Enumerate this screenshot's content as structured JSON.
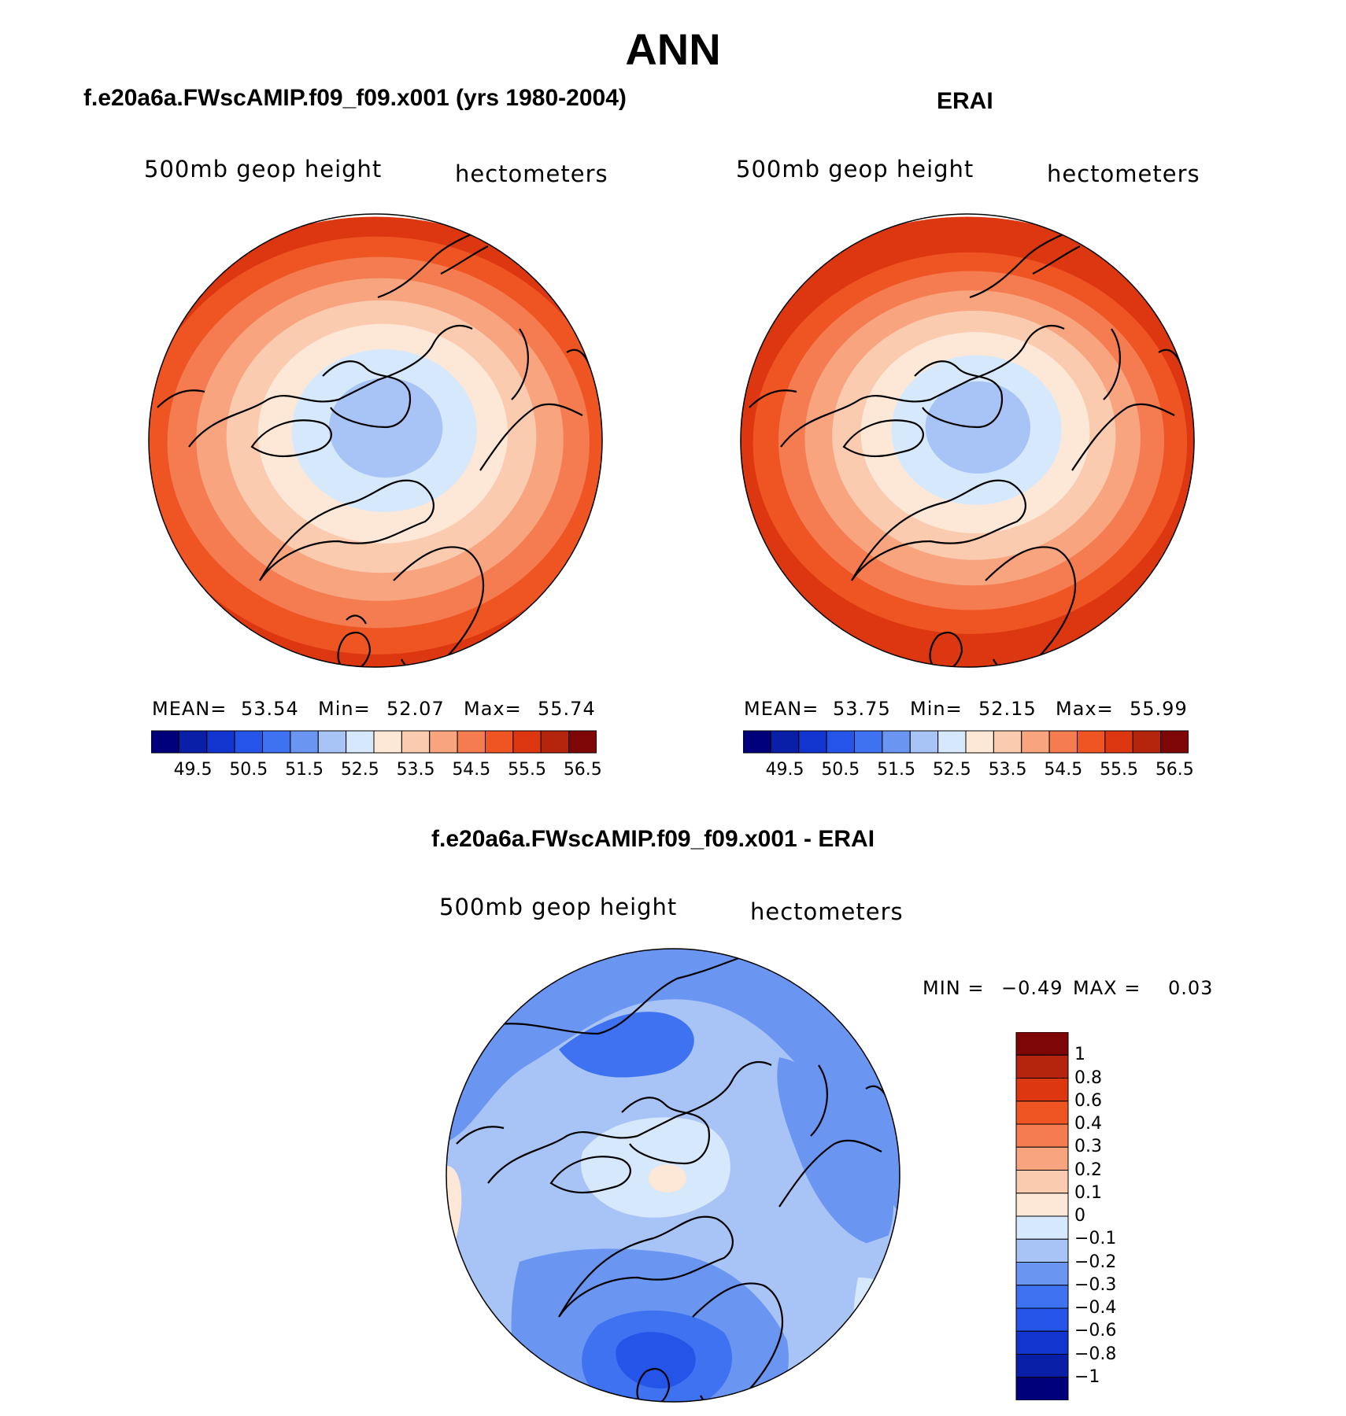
{
  "page": {
    "title": "ANN"
  },
  "panels": [
    {
      "title": "f.e20a6a.FWscAMIP.f09_f09.x001 (yrs 1980-2004)",
      "field": "500mb geop height",
      "units": "hectometers",
      "mean_label": "MEAN=",
      "mean": "53.54",
      "min_label": "Min=",
      "min": "52.07",
      "max_label": "Max=",
      "max": "55.74"
    },
    {
      "title": "ERAI",
      "field": "500mb geop height",
      "units": "hectometers",
      "mean_label": "MEAN=",
      "mean": "53.75",
      "min_label": "Min=",
      "min": "52.15",
      "max_label": "Max=",
      "max": "55.99"
    },
    {
      "title": "f.e20a6a.FWscAMIP.f09_f09.x001 - ERAI",
      "field": "500mb geop height",
      "units": "hectometers",
      "min_label": "MIN =",
      "min": "−0.49",
      "max_label": "MAX =",
      "max": "0.03"
    }
  ],
  "colors": {
    "abs": [
      "#00007a",
      "#0a1fa8",
      "#1235cf",
      "#2455e8",
      "#3f72f0",
      "#6a96f2",
      "#a8c3f5",
      "#d6e8fb",
      "#fde8d8",
      "#fbcbb0",
      "#f7a47f",
      "#f47c50",
      "#ef5423",
      "#dc3710",
      "#b5240c",
      "#7e0606"
    ],
    "diff": [
      "#00007a",
      "#0a1fa8",
      "#1235cf",
      "#2455e8",
      "#3f72f0",
      "#6a96f2",
      "#a8c3f5",
      "#d6e8fb",
      "#fde8d8",
      "#fbcbb0",
      "#f7a47f",
      "#f47c50",
      "#ef5423",
      "#dc3710",
      "#b5240c",
      "#7e0606"
    ],
    "coast": "#000000"
  },
  "chart_data": [
    {
      "type": "heatmap",
      "projection": "polar-stereographic (north pole)",
      "title": "f.e20a6a.FWscAMIP.f09_f09.x001 (yrs 1980-2004)",
      "variable": "500mb geop height",
      "units": "hectometers",
      "colorbar_ticks": [
        "49.5",
        "50.5",
        "51.5",
        "52.5",
        "53.5",
        "54.5",
        "55.5",
        "56.5"
      ],
      "contour_levels": [
        49,
        49.5,
        50,
        50.5,
        51,
        51.5,
        52,
        52.5,
        53,
        53.5,
        54,
        54.5,
        55,
        55.5,
        56,
        56.5
      ],
      "mean": 53.54,
      "min": 52.07,
      "max": 55.74,
      "center_value": 52.3,
      "rings": [
        52.3,
        52.8,
        53.3,
        53.8,
        54.3,
        54.8,
        55.3,
        55.7
      ]
    },
    {
      "type": "heatmap",
      "projection": "polar-stereographic (north pole)",
      "title": "ERAI",
      "variable": "500mb geop height",
      "units": "hectometers",
      "colorbar_ticks": [
        "49.5",
        "50.5",
        "51.5",
        "52.5",
        "53.5",
        "54.5",
        "55.5",
        "56.5"
      ],
      "contour_levels": [
        49,
        49.5,
        50,
        50.5,
        51,
        51.5,
        52,
        52.5,
        53,
        53.5,
        54,
        54.5,
        55,
        55.5,
        56,
        56.5
      ],
      "mean": 53.75,
      "min": 52.15,
      "max": 55.99,
      "center_value": 52.3,
      "rings": [
        52.3,
        52.8,
        53.3,
        53.8,
        54.3,
        54.8,
        55.3,
        55.7,
        55.99
      ]
    },
    {
      "type": "heatmap",
      "projection": "polar-stereographic (north pole)",
      "title": "f.e20a6a.FWscAMIP.f09_f09.x001 - ERAI",
      "variable": "500mb geop height",
      "units": "hectometers",
      "colorbar_ticks": [
        "1",
        "0.8",
        "0.6",
        "0.4",
        "0.3",
        "0.2",
        "0.1",
        "0",
        "−0.1",
        "−0.2",
        "−0.3",
        "−0.4",
        "−0.6",
        "−0.8",
        "−1"
      ],
      "min": -0.49,
      "max": 0.03
    }
  ]
}
